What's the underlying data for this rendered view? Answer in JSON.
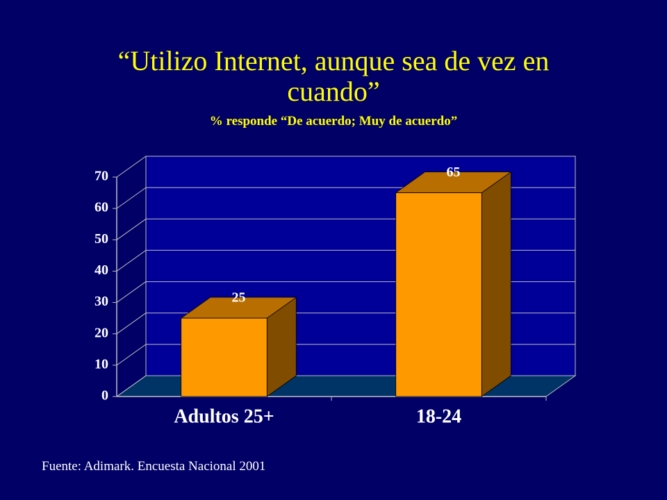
{
  "chart_data": {
    "type": "bar3d",
    "title": "“Utilizo Internet, aunque sea de vez en cuando”",
    "subtitle": "% responde “De acuerdo; Muy de acuerdo”",
    "categories": [
      "Adultos 25+",
      "18-24"
    ],
    "values": [
      25,
      65
    ],
    "color": "#ff9900",
    "ylim": [
      0,
      70
    ],
    "yticks": [
      0,
      10,
      20,
      30,
      40,
      50,
      60,
      70
    ],
    "grid": true,
    "source": "Fuente: Adimark. Encuesta Nacional 2001"
  }
}
